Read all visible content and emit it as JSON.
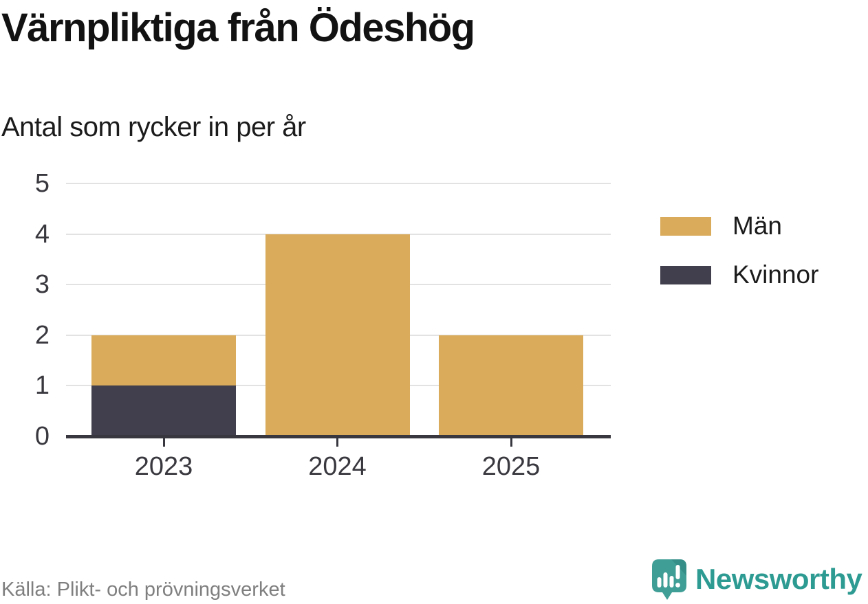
{
  "header": {
    "title": "Värnpliktiga från Ödeshög",
    "subtitle": "Antal som rycker in per år"
  },
  "chart_data": {
    "type": "bar",
    "stacked": true,
    "title": "Värnpliktiga från Ödeshög",
    "subtitle": "Antal som rycker in per år",
    "categories": [
      "2023",
      "2024",
      "2025"
    ],
    "series": [
      {
        "name": "Män",
        "color": "#d9ab5a",
        "values": [
          1,
          4,
          2
        ]
      },
      {
        "name": "Kvinnor",
        "color": "#413f4d",
        "values": [
          1,
          0,
          0
        ]
      }
    ],
    "stack_note": "Kvinnor drawn at bottom of stack, Män on top",
    "xlabel": "",
    "ylabel": "",
    "ylim": [
      0,
      5
    ],
    "yticks": [
      0,
      1,
      2,
      3,
      4,
      5
    ],
    "grid": true,
    "legend_position": "right"
  },
  "theme": {
    "grid_color": "#e2e2e2",
    "axis_color": "#38373f",
    "tick_text_color": "#39383f",
    "source_text_color": "#7f7f7f",
    "brand_teal": "#3f9e96",
    "brand_teal_dark": "#358f88",
    "brand_text_teal": "#2e9b93"
  },
  "footer": {
    "source": "Källa: Plikt- och prövningsverket",
    "brand": "Newsworthy"
  }
}
